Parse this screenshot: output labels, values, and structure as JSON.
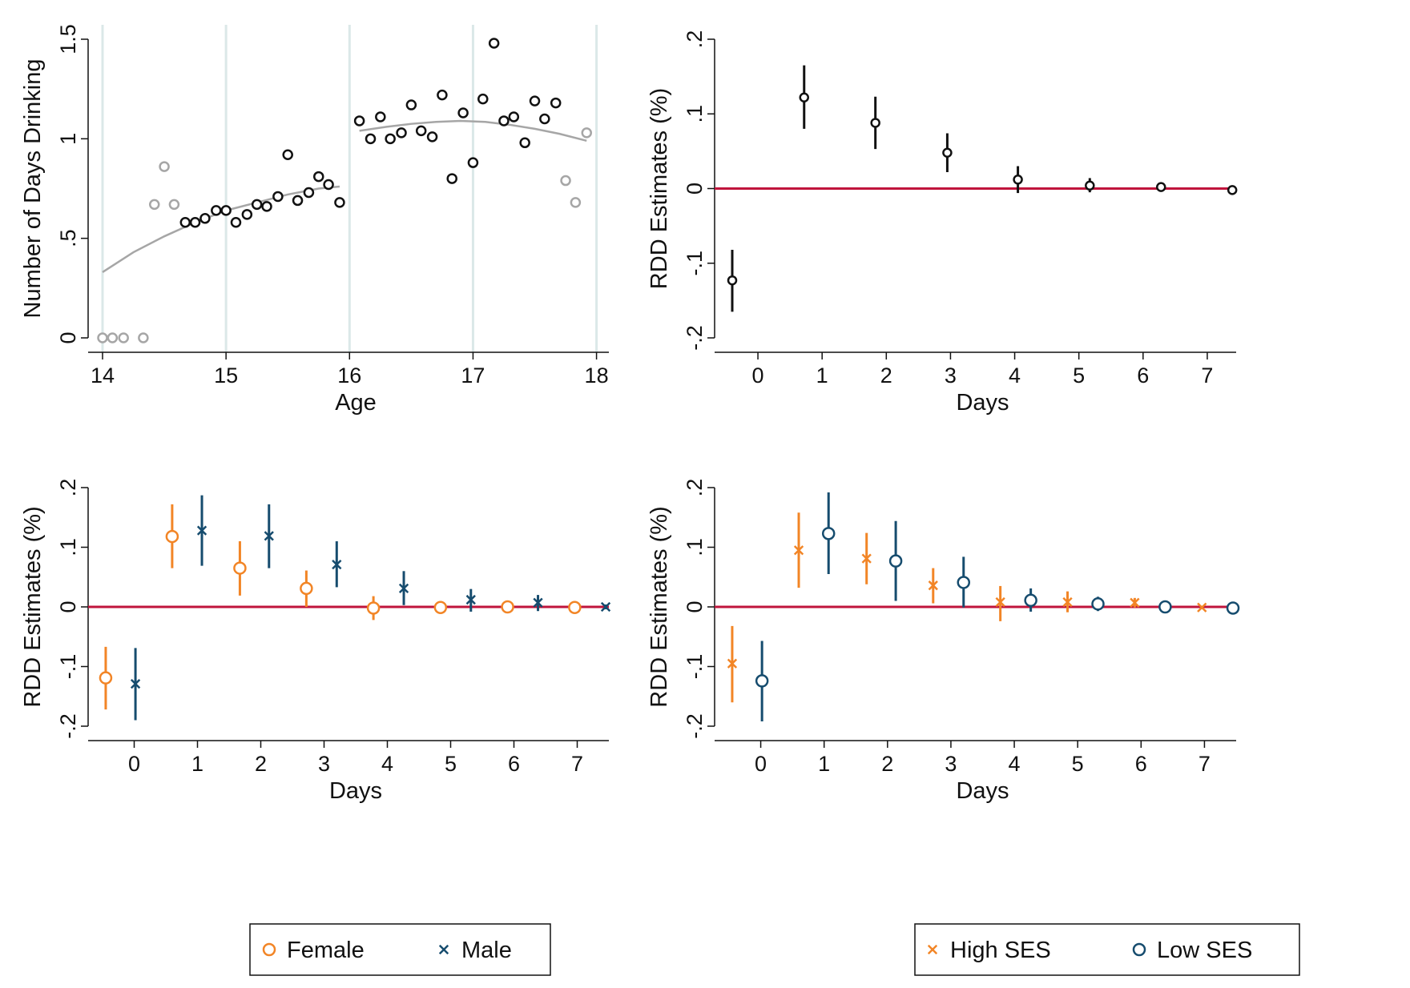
{
  "chart_data": [
    {
      "type": "scatter",
      "xlabel": "Age",
      "ylabel": "Number of Days Drinking",
      "xlim": [
        14,
        18.1
      ],
      "ylim": [
        0,
        1.5
      ],
      "xticks": [
        14,
        15,
        16,
        17,
        18
      ],
      "yticks": [
        0,
        0.5,
        1,
        1.5
      ],
      "ytick_labels": [
        "0",
        ".5",
        "1",
        "1.5"
      ],
      "vertical_lines": [
        14,
        15,
        16,
        17,
        18
      ],
      "colors": {
        "black": "#111111",
        "grey": "#a6a6a6",
        "fit": "#a6a6a6",
        "vline": "#dbe8e8"
      },
      "series": [
        {
          "style": "black",
          "x": [
            14.67,
            14.75,
            14.83,
            14.92,
            15.0,
            15.08,
            15.17,
            15.25,
            15.33,
            15.42,
            15.5,
            15.58,
            15.67,
            15.75,
            15.83,
            15.92,
            16.08,
            16.17,
            16.25,
            16.33,
            16.42,
            16.5,
            16.58,
            16.67,
            16.75,
            16.83,
            16.92,
            17.0,
            17.08,
            17.17,
            17.25,
            17.33,
            17.42,
            17.5,
            17.58,
            17.67
          ],
          "y": [
            0.58,
            0.58,
            0.6,
            0.64,
            0.64,
            0.58,
            0.62,
            0.67,
            0.66,
            0.71,
            0.92,
            0.69,
            0.73,
            0.81,
            0.77,
            0.68,
            1.09,
            1.0,
            1.11,
            1.0,
            1.03,
            1.17,
            1.04,
            1.01,
            1.22,
            0.8,
            1.13,
            0.88,
            1.2,
            1.48,
            1.09,
            1.11,
            0.98,
            1.19,
            1.1,
            1.18
          ]
        },
        {
          "style": "grey",
          "x": [
            14.0,
            14.08,
            14.17,
            14.33,
            14.42,
            14.5,
            14.58,
            17.75,
            17.83,
            17.92
          ],
          "y": [
            0.0,
            0.0,
            0.0,
            0.0,
            0.67,
            0.86,
            0.67,
            0.79,
            0.68,
            1.03
          ]
        }
      ],
      "fit_lines": [
        {
          "x": [
            14.0,
            14.25,
            14.5,
            14.75,
            15.0,
            15.25,
            15.5,
            15.75,
            15.92
          ],
          "y": [
            0.33,
            0.43,
            0.51,
            0.58,
            0.64,
            0.68,
            0.72,
            0.75,
            0.76
          ]
        },
        {
          "x": [
            16.08,
            16.3,
            16.5,
            16.7,
            16.9,
            17.1,
            17.3,
            17.5,
            17.7,
            17.92
          ],
          "y": [
            1.04,
            1.06,
            1.075,
            1.085,
            1.09,
            1.085,
            1.07,
            1.05,
            1.025,
            0.99
          ]
        }
      ]
    },
    {
      "type": "scatter",
      "xlabel": "Days",
      "ylabel": "RDD Estimates (%)",
      "xlim": [
        -0.45,
        7.45
      ],
      "ylim": [
        -0.2,
        0.2
      ],
      "xticks": [
        0,
        1,
        2,
        3,
        4,
        5,
        6,
        7
      ],
      "yticks": [
        -0.2,
        -0.1,
        0,
        0.1,
        0.2
      ],
      "ytick_labels": [
        "-.2",
        "-.1",
        "0",
        ".1",
        ".2"
      ],
      "reference_line": {
        "y": 0,
        "color": "#c0143c"
      },
      "series": [
        {
          "marker": "circle",
          "color": "#111111",
          "x": [
            -0.4,
            0.72,
            1.83,
            2.95,
            4.05,
            5.17,
            6.28,
            7.39
          ],
          "y": [
            -0.123,
            0.122,
            0.088,
            0.048,
            0.012,
            0.004,
            0.002,
            -0.002
          ],
          "ci_low": [
            -0.165,
            0.08,
            0.053,
            0.022,
            -0.006,
            -0.005,
            -0.004,
            -0.006
          ],
          "ci_high": [
            -0.082,
            0.165,
            0.123,
            0.074,
            0.03,
            0.014,
            0.007,
            0.001
          ]
        }
      ]
    },
    {
      "type": "scatter",
      "xlabel": "Days",
      "ylabel": "RDD Estimates (%)",
      "xlim": [
        -0.5,
        7.5
      ],
      "ylim": [
        -0.2,
        0.2
      ],
      "xticks": [
        0,
        1,
        2,
        3,
        4,
        5,
        6,
        7
      ],
      "yticks": [
        -0.2,
        -0.1,
        0,
        0.1,
        0.2
      ],
      "ytick_labels": [
        "-.2",
        "-.1",
        "0",
        ".1",
        ".2"
      ],
      "reference_line": {
        "y": 0,
        "color": "#c0143c"
      },
      "legend": {
        "position": "bottom"
      },
      "series": [
        {
          "name": "Female",
          "marker": "circle",
          "color": "#f28526",
          "x": [
            -0.45,
            0.6,
            1.67,
            2.72,
            3.78,
            4.84,
            5.9,
            6.96
          ],
          "y": [
            -0.119,
            0.118,
            0.065,
            0.031,
            -0.002,
            -0.001,
            0.0,
            -0.001
          ],
          "ci_low": [
            -0.172,
            0.065,
            0.019,
            0.0,
            -0.022,
            -0.007,
            -0.005,
            -0.005
          ],
          "ci_high": [
            -0.067,
            0.172,
            0.11,
            0.061,
            0.018,
            0.005,
            0.005,
            0.002
          ]
        },
        {
          "name": "Male",
          "marker": "x",
          "color": "#164c6e",
          "x": [
            0.02,
            1.07,
            2.13,
            3.2,
            4.26,
            5.32,
            6.38,
            7.45
          ],
          "y": [
            -0.129,
            0.128,
            0.119,
            0.071,
            0.031,
            0.012,
            0.007,
            0.0
          ],
          "ci_low": [
            -0.19,
            0.069,
            0.065,
            0.033,
            0.003,
            -0.008,
            -0.007,
            -0.004
          ],
          "ci_high": [
            -0.069,
            0.187,
            0.172,
            0.11,
            0.06,
            0.03,
            0.02,
            0.004
          ]
        }
      ]
    },
    {
      "type": "scatter",
      "xlabel": "Days",
      "ylabel": "RDD Estimates (%)",
      "xlim": [
        -0.5,
        7.5
      ],
      "ylim": [
        -0.2,
        0.2
      ],
      "xticks": [
        0,
        1,
        2,
        3,
        4,
        5,
        6,
        7
      ],
      "yticks": [
        -0.2,
        -0.1,
        0,
        0.1,
        0.2
      ],
      "ytick_labels": [
        "-.2",
        "-.1",
        "0",
        ".1",
        ".2"
      ],
      "reference_line": {
        "y": 0,
        "color": "#c0143c"
      },
      "legend": {
        "position": "bottom"
      },
      "series": [
        {
          "name": "High SES",
          "marker": "x",
          "color": "#f28526",
          "x": [
            -0.45,
            0.6,
            1.67,
            2.72,
            3.78,
            4.84,
            5.9,
            6.96
          ],
          "y": [
            -0.095,
            0.095,
            0.081,
            0.036,
            0.008,
            0.008,
            0.007,
            -0.001
          ],
          "ci_low": [
            -0.16,
            0.032,
            0.038,
            0.006,
            -0.024,
            -0.009,
            -0.001,
            -0.004
          ],
          "ci_high": [
            -0.032,
            0.158,
            0.124,
            0.065,
            0.035,
            0.026,
            0.015,
            0.002
          ]
        },
        {
          "name": "Low SES",
          "marker": "circle",
          "color": "#164c6e",
          "x": [
            0.02,
            1.07,
            2.13,
            3.2,
            4.26,
            5.32,
            6.38,
            7.45
          ],
          "y": [
            -0.124,
            0.123,
            0.077,
            0.041,
            0.011,
            0.005,
            0.0,
            -0.002
          ],
          "ci_low": [
            -0.192,
            0.055,
            0.01,
            -0.001,
            -0.008,
            -0.007,
            -0.005,
            -0.005
          ],
          "ci_high": [
            -0.057,
            0.192,
            0.144,
            0.084,
            0.031,
            0.017,
            0.005,
            0.002
          ]
        }
      ]
    }
  ]
}
